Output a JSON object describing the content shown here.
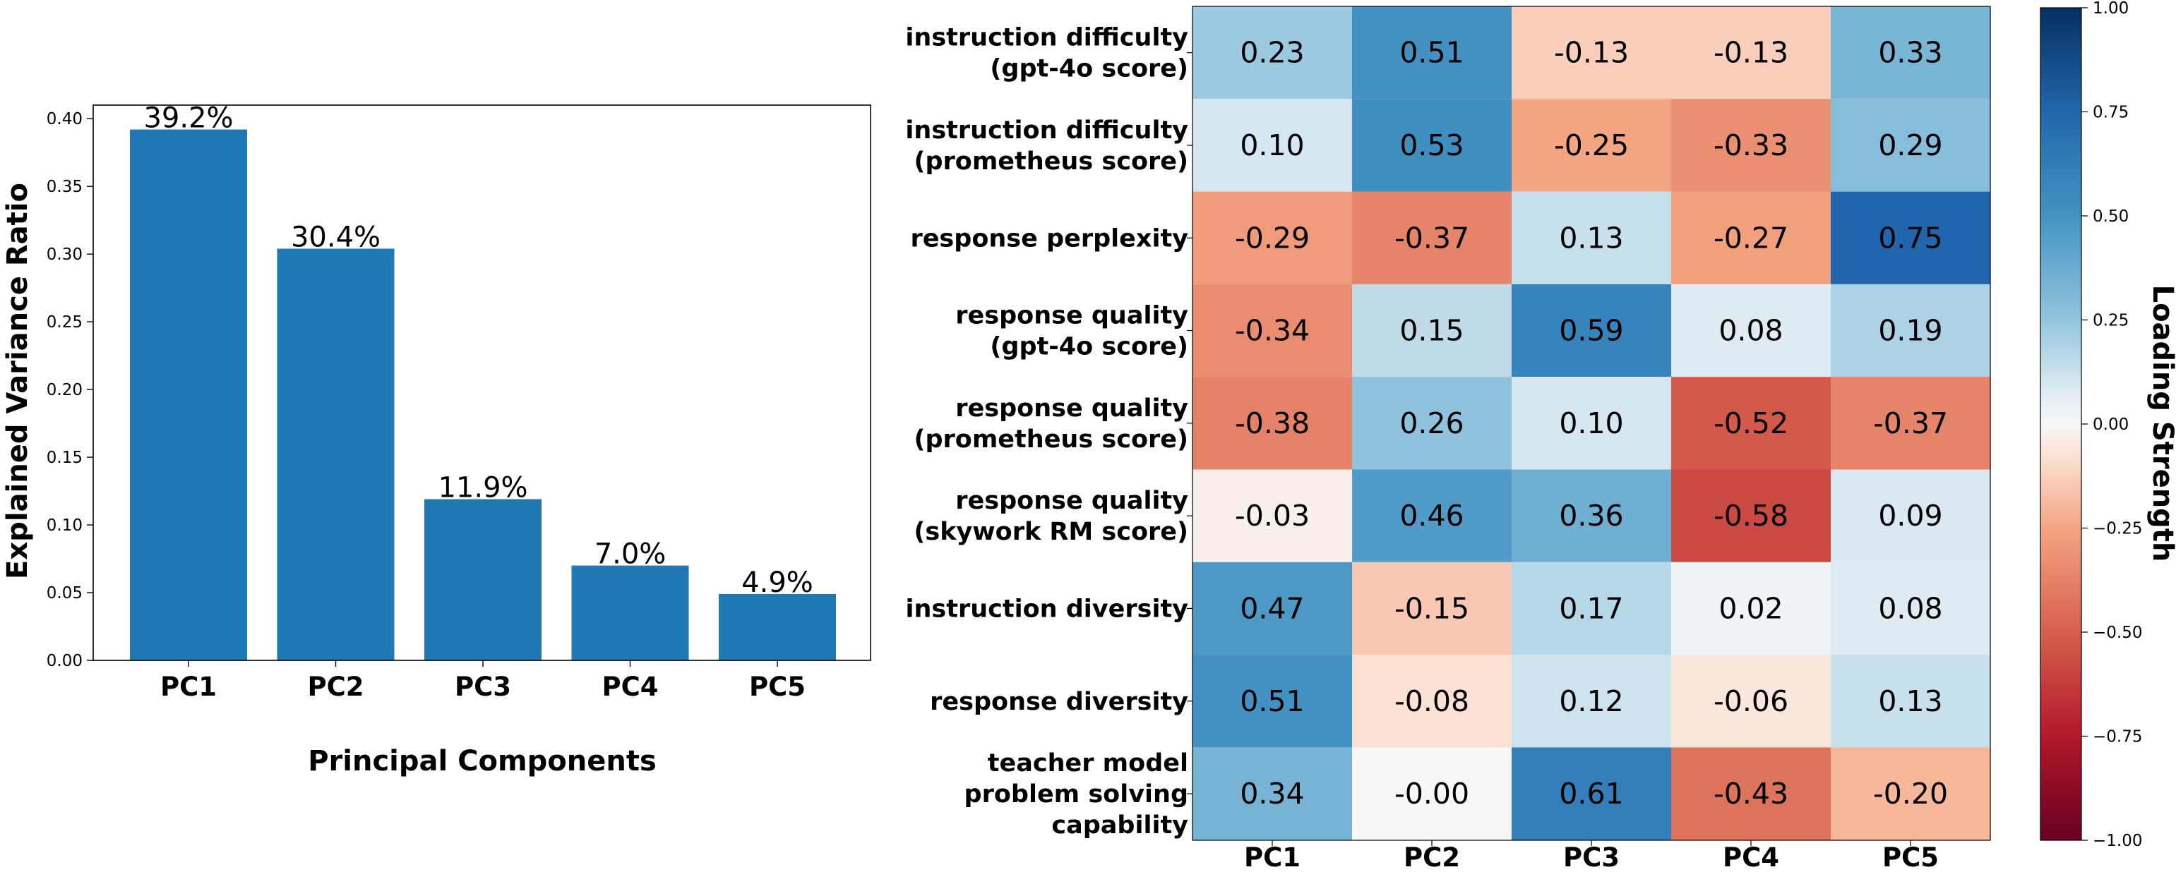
{
  "chart_data": [
    {
      "type": "bar",
      "categories": [
        "PC1",
        "PC2",
        "PC3",
        "PC4",
        "PC5"
      ],
      "values": [
        0.392,
        0.304,
        0.119,
        0.07,
        0.049
      ],
      "value_labels": [
        "39.2%",
        "30.4%",
        "11.9%",
        "7.0%",
        "4.9%"
      ],
      "xlabel": "Principal Components",
      "ylabel": "Explained Variance Ratio",
      "ylim": [
        0,
        0.41
      ],
      "yticks": [
        0.0,
        0.05,
        0.1,
        0.15,
        0.2,
        0.25,
        0.3,
        0.35,
        0.4
      ],
      "ytick_labels": [
        "0.00",
        "0.05",
        "0.10",
        "0.15",
        "0.20",
        "0.25",
        "0.30",
        "0.35",
        "0.40"
      ],
      "color": "#1f77b4",
      "grid": false
    },
    {
      "type": "heatmap",
      "rows": [
        [
          "instruction difficulty",
          "(gpt-4o score)"
        ],
        [
          "instruction difficulty",
          "(prometheus score)"
        ],
        [
          "response perplexity"
        ],
        [
          "response quality",
          "(gpt-4o score)"
        ],
        [
          "response quality",
          "(prometheus score)"
        ],
        [
          "response quality",
          "(skywork RM score)"
        ],
        [
          "instruction diversity"
        ],
        [
          "response diversity"
        ],
        [
          "teacher model",
          "problem solving",
          "capability"
        ]
      ],
      "columns": [
        "PC1",
        "PC2",
        "PC3",
        "PC4",
        "PC5"
      ],
      "values": [
        [
          0.23,
          0.51,
          -0.13,
          -0.13,
          0.33
        ],
        [
          0.1,
          0.53,
          -0.25,
          -0.33,
          0.29
        ],
        [
          -0.29,
          -0.37,
          0.13,
          -0.27,
          0.75
        ],
        [
          -0.34,
          0.15,
          0.59,
          0.08,
          0.19
        ],
        [
          -0.38,
          0.26,
          0.1,
          -0.52,
          -0.37
        ],
        [
          -0.03,
          0.46,
          0.36,
          -0.58,
          0.09
        ],
        [
          0.47,
          -0.15,
          0.17,
          0.02,
          0.08
        ],
        [
          0.51,
          -0.08,
          0.12,
          -0.06,
          0.13
        ],
        [
          0.34,
          -0.0,
          0.61,
          -0.43,
          -0.2
        ]
      ],
      "cell_labels": [
        [
          "0.23",
          "0.51",
          "-0.13",
          "-0.13",
          "0.33"
        ],
        [
          "0.10",
          "0.53",
          "-0.25",
          "-0.33",
          "0.29"
        ],
        [
          "-0.29",
          "-0.37",
          "0.13",
          "-0.27",
          "0.75"
        ],
        [
          "-0.34",
          "0.15",
          "0.59",
          "0.08",
          "0.19"
        ],
        [
          "-0.38",
          "0.26",
          "0.10",
          "-0.52",
          "-0.37"
        ],
        [
          "-0.03",
          "0.46",
          "0.36",
          "-0.58",
          "0.09"
        ],
        [
          "0.47",
          "-0.15",
          "0.17",
          "0.02",
          "0.08"
        ],
        [
          "0.51",
          "-0.08",
          "0.12",
          "-0.06",
          "0.13"
        ],
        [
          "0.34",
          "-0.00",
          "0.61",
          "-0.43",
          "-0.20"
        ]
      ],
      "colormap": "RdBu",
      "vmin": -1.0,
      "vmax": 1.0,
      "colorbar": {
        "label": "Loading Strength",
        "ticks": [
          1.0,
          0.75,
          0.5,
          0.25,
          0.0,
          -0.25,
          -0.5,
          -0.75,
          -1.0
        ],
        "tick_labels": [
          "1.00",
          "0.75",
          "0.50",
          "0.25",
          "0.00",
          "−0.25",
          "−0.50",
          "−0.75",
          "−1.00"
        ]
      }
    }
  ]
}
